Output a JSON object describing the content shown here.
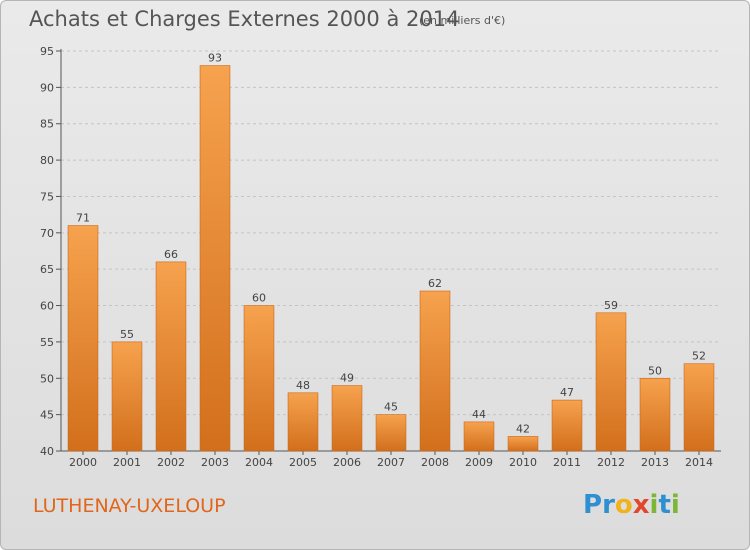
{
  "chart_data": {
    "type": "bar",
    "title": "Achats et Charges Externes 2000 à 2014",
    "unit": "(en milliers d'€)",
    "categories": [
      "2000",
      "2001",
      "2002",
      "2003",
      "2004",
      "2005",
      "2006",
      "2007",
      "2008",
      "2009",
      "2010",
      "2011",
      "2012",
      "2013",
      "2014"
    ],
    "values": [
      71,
      55,
      66,
      93,
      60,
      48,
      49,
      45,
      62,
      44,
      42,
      47,
      59,
      50,
      52
    ],
    "ylim": [
      40,
      95
    ],
    "yticks": [
      40,
      45,
      50,
      55,
      60,
      65,
      70,
      75,
      80,
      85,
      90,
      95
    ],
    "grid": true,
    "bar_color_top": "#f6a24e",
    "bar_color_bottom": "#d26f1c"
  },
  "commune": "LUTHENAY-UXELOUP",
  "logo": {
    "letters": [
      "P",
      "r",
      "o",
      "x",
      "i",
      "t",
      "i"
    ],
    "colors": [
      "#2e8fd1",
      "#2e8fd1",
      "#f2b21b",
      "#e2472b",
      "#7bb636",
      "#2e8fd1",
      "#7bb636"
    ]
  }
}
